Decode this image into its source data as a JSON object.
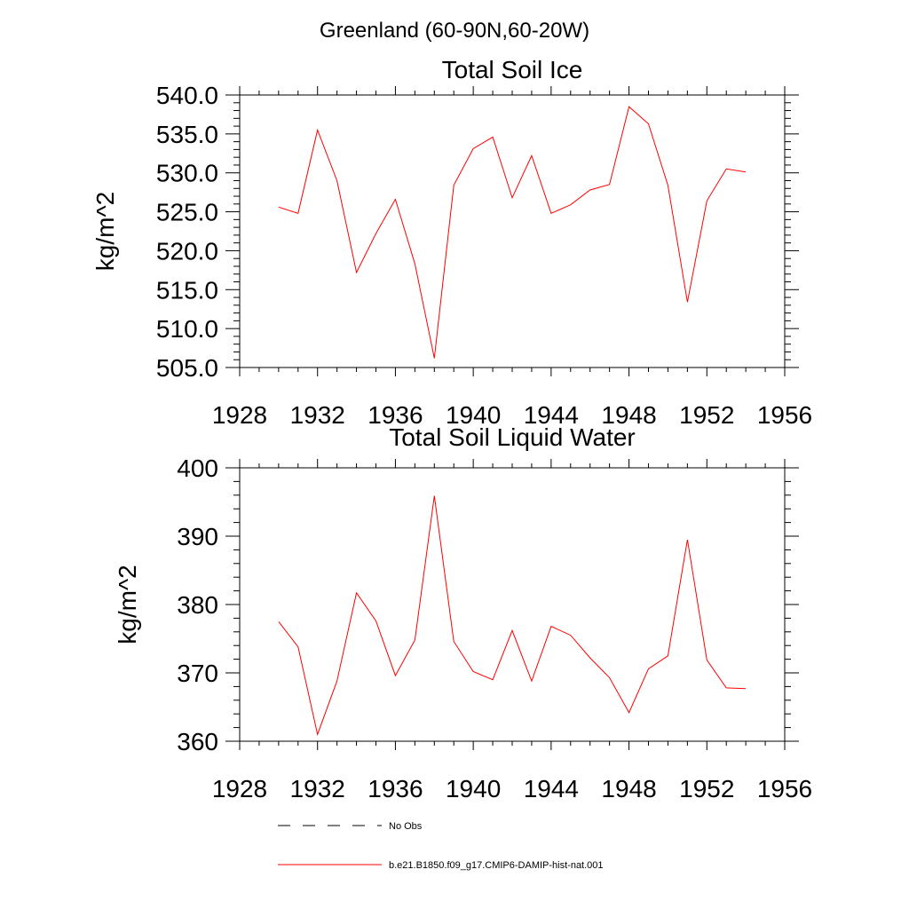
{
  "main_title": "Greenland (60-90N,60-20W)",
  "line_color": "#ff0000",
  "chart_data": [
    {
      "type": "line",
      "title": "Total Soil Ice",
      "xlabel": "",
      "ylabel": "kg/m^2",
      "xlim": [
        1928,
        1956
      ],
      "ylim": [
        505,
        540
      ],
      "xticks": [
        1928,
        1932,
        1936,
        1940,
        1944,
        1948,
        1952,
        1956
      ],
      "xtick_labels": [
        "1928",
        "1932",
        "1936",
        "1940",
        "1944",
        "1948",
        "1952",
        "1956"
      ],
      "yticks": [
        505,
        510,
        515,
        520,
        525,
        530,
        535,
        540
      ],
      "ytick_labels": [
        "505.0",
        "510.0",
        "515.0",
        "520.0",
        "525.0",
        "530.0",
        "535.0",
        "540.0"
      ],
      "grid": false,
      "series": [
        {
          "name": "b.e21.B1850.f09_g17.CMIP6-DAMIP-hist-nat.001",
          "x": [
            1930,
            1931,
            1932,
            1933,
            1934,
            1935,
            1936,
            1937,
            1938,
            1939,
            1940,
            1941,
            1942,
            1943,
            1944,
            1945,
            1946,
            1947,
            1948,
            1949,
            1950,
            1951,
            1952,
            1953,
            1954
          ],
          "y": [
            525.6,
            524.8,
            535.5,
            529.0,
            517.2,
            522.2,
            526.6,
            518.3,
            506.2,
            528.4,
            533.1,
            534.6,
            526.8,
            532.2,
            524.8,
            525.9,
            527.8,
            528.5,
            538.5,
            536.3,
            528.4,
            513.4,
            526.4,
            530.5,
            530.1
          ]
        }
      ]
    },
    {
      "type": "line",
      "title": "Total Soil Liquid Water",
      "xlabel": "",
      "ylabel": "kg/m^2",
      "xlim": [
        1928,
        1956
      ],
      "ylim": [
        360,
        400
      ],
      "xticks": [
        1928,
        1932,
        1936,
        1940,
        1944,
        1948,
        1952,
        1956
      ],
      "xtick_labels": [
        "1928",
        "1932",
        "1936",
        "1940",
        "1944",
        "1948",
        "1952",
        "1956"
      ],
      "yticks": [
        360,
        370,
        380,
        390,
        400
      ],
      "ytick_labels": [
        "360",
        "370",
        "380",
        "390",
        "400"
      ],
      "grid": false,
      "series": [
        {
          "name": "b.e21.B1850.f09_g17.CMIP6-DAMIP-hist-nat.001",
          "x": [
            1930,
            1931,
            1932,
            1933,
            1934,
            1935,
            1936,
            1937,
            1938,
            1939,
            1940,
            1941,
            1942,
            1943,
            1944,
            1945,
            1946,
            1947,
            1948,
            1949,
            1950,
            1951,
            1952,
            1953,
            1954
          ],
          "y": [
            377.5,
            373.8,
            361.0,
            368.8,
            381.7,
            377.6,
            369.6,
            374.8,
            395.9,
            374.6,
            370.2,
            369.0,
            376.2,
            368.8,
            376.8,
            375.5,
            372.2,
            369.3,
            364.2,
            370.6,
            372.5,
            389.5,
            371.9,
            367.8,
            367.7
          ]
        }
      ]
    }
  ],
  "legend": {
    "placement": "bottom",
    "entries": [
      {
        "label": "No Obs",
        "style": "dashed",
        "color": "#000000"
      },
      {
        "label": "b.e21.B1850.f09_g17.CMIP6-DAMIP-hist-nat.001",
        "style": "solid",
        "color": "#ff0000"
      }
    ]
  }
}
